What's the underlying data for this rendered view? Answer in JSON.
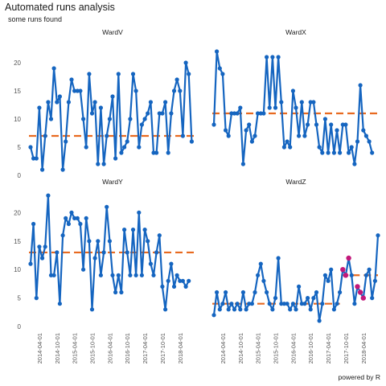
{
  "title": "Automated runs analysis",
  "subtitle": "some runs found",
  "caption": "powered by R",
  "colors": {
    "line": "#1565c0",
    "median": "#e86a20",
    "highlight": "#c2187a",
    "text": "#1a1a1a",
    "axis": "#555555"
  },
  "chart_data": {
    "type": "line",
    "facets": [
      "WardV",
      "WardX",
      "WardY",
      "WardZ"
    ],
    "ylim": [
      0,
      24
    ],
    "y_ticks": [
      0,
      5,
      10,
      15,
      20
    ],
    "x_ticks": [
      "2014-04-01",
      "2014-10-01",
      "2015-04-01",
      "2015-10-01",
      "2016-04-01",
      "2016-10-01",
      "2017-04-01",
      "2017-10-01",
      "2018-04-01"
    ],
    "x_start": "2014-01",
    "x_step": "1 month",
    "grid": false,
    "series": [
      {
        "facet": "WardV",
        "values": [
          5,
          3,
          3,
          12,
          1,
          7,
          13,
          10,
          19,
          13,
          14,
          1,
          6,
          13,
          17,
          15,
          15,
          15,
          10,
          5,
          18,
          11,
          13,
          2,
          12,
          2,
          7,
          10,
          14,
          3,
          18,
          4,
          5,
          6,
          10,
          18,
          15,
          5,
          9,
          10,
          11,
          13,
          4,
          4,
          11,
          11,
          13,
          4,
          11,
          15,
          17,
          15,
          7,
          20,
          18,
          6
        ],
        "median_segments": [
          {
            "from": 0,
            "to": 56,
            "value": 7
          }
        ],
        "highlight": []
      },
      {
        "facet": "WardX",
        "values": [
          9,
          22,
          19,
          18,
          8,
          7,
          11,
          11,
          11,
          12,
          2,
          8,
          9,
          6,
          7,
          11,
          11,
          11,
          21,
          12,
          21,
          12,
          21,
          13,
          5,
          6,
          5,
          15,
          12,
          7,
          13,
          7,
          9,
          13,
          13,
          9,
          5,
          4,
          10,
          4,
          9,
          4,
          8,
          4,
          9,
          9,
          4,
          5,
          2,
          6,
          16,
          8,
          7,
          6,
          4
        ],
        "median_segments": [
          {
            "from": 0,
            "to": 56,
            "value": 11
          }
        ],
        "highlight": []
      },
      {
        "facet": "WardY",
        "values": [
          11,
          18,
          5,
          14,
          12,
          14,
          23,
          9,
          9,
          13,
          4,
          16,
          19,
          18,
          20,
          19,
          19,
          18,
          10,
          19,
          15,
          3,
          12,
          15,
          9,
          13,
          21,
          15,
          9,
          6,
          9,
          6,
          17,
          13,
          9,
          17,
          9,
          20,
          9,
          17,
          15,
          11,
          9,
          13,
          16,
          7,
          3,
          8,
          11,
          7,
          9,
          8,
          8,
          7,
          8
        ],
        "median_segments": [
          {
            "from": 0,
            "to": 56,
            "value": 13
          }
        ],
        "highlight": []
      },
      {
        "facet": "WardZ",
        "values": [
          2,
          6,
          3,
          4,
          6,
          3,
          4,
          3,
          4,
          3,
          6,
          3,
          4,
          4,
          6,
          9,
          11,
          8,
          6,
          4,
          3,
          5,
          12,
          4,
          4,
          4,
          3,
          4,
          3,
          7,
          4,
          4,
          5,
          3,
          5,
          6,
          1,
          4,
          9,
          8,
          10,
          3,
          4,
          6,
          10,
          9,
          12,
          9,
          4,
          7,
          6,
          5,
          9,
          10,
          5,
          8,
          16
        ],
        "median_segments": [
          {
            "from": 0,
            "to": 43,
            "value": 4
          },
          {
            "from": 44,
            "to": 56,
            "value": 9
          }
        ],
        "highlight": [
          44,
          45,
          46,
          49,
          50,
          51
        ]
      }
    ]
  }
}
